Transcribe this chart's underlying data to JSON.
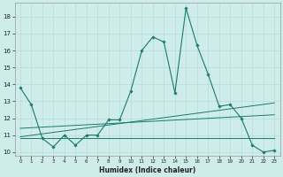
{
  "xlabel": "Humidex (Indice chaleur)",
  "background_color": "#ceecea",
  "grid_color": "#b8ddd8",
  "line_color": "#1a7a6e",
  "xlim": [
    -0.5,
    23.5
  ],
  "ylim": [
    9.8,
    18.8
  ],
  "yticks": [
    10,
    11,
    12,
    13,
    14,
    15,
    16,
    17,
    18
  ],
  "xticks": [
    0,
    1,
    2,
    3,
    4,
    5,
    6,
    7,
    8,
    9,
    10,
    11,
    12,
    13,
    14,
    15,
    16,
    17,
    18,
    19,
    20,
    21,
    22,
    23
  ],
  "line1_x": [
    0,
    1,
    2,
    3,
    4,
    5,
    6,
    7,
    8,
    9,
    10,
    11,
    12,
    13,
    14,
    15,
    16,
    17,
    18,
    19,
    20,
    21,
    22,
    23
  ],
  "line1_y": [
    13.8,
    12.8,
    10.8,
    10.3,
    11.0,
    10.4,
    11.0,
    11.0,
    11.9,
    11.9,
    13.6,
    16.0,
    16.8,
    16.5,
    13.5,
    18.5,
    16.3,
    14.6,
    12.7,
    12.8,
    12.0,
    10.4,
    10.0,
    10.1
  ],
  "line2_x": [
    0,
    23
  ],
  "line2_y": [
    10.8,
    10.8
  ],
  "line3_x": [
    0,
    23
  ],
  "line3_y": [
    10.9,
    12.9
  ],
  "line4_x": [
    0,
    23
  ],
  "line4_y": [
    11.4,
    12.2
  ]
}
